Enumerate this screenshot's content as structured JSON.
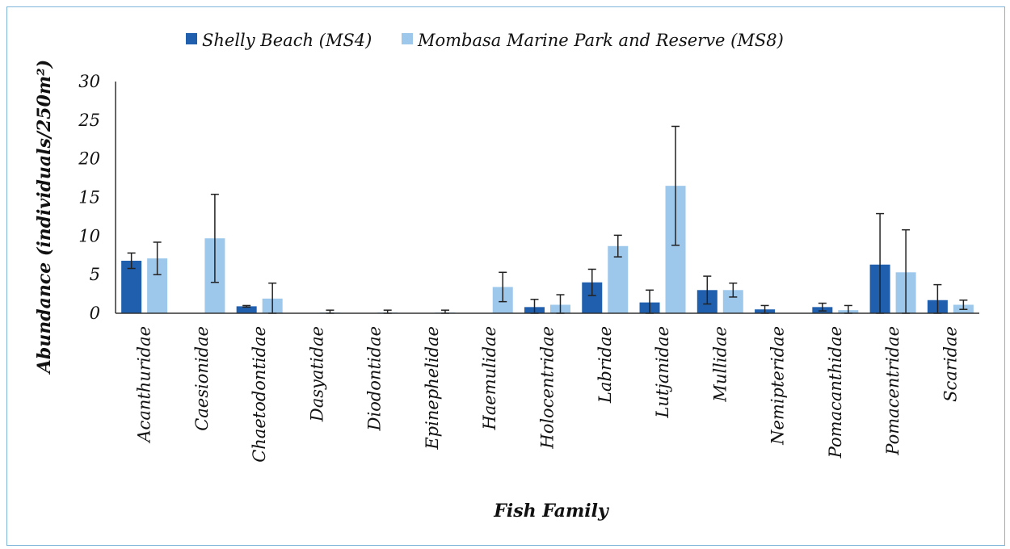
{
  "chart_data": {
    "type": "bar",
    "title": "",
    "xlabel": "Fish Family",
    "ylabel": "Abundance (individuals/250m²)",
    "ylim": [
      0,
      30
    ],
    "yticks": [
      "0",
      "5",
      "10",
      "15",
      "20",
      "25",
      "30"
    ],
    "grid": false,
    "legend_position": "top",
    "categories": [
      "Acanthuridae",
      "Caesionidae",
      "Chaetodontidae",
      "Dasyatidae",
      "Diodontidae",
      "Epinephelidae",
      "Haemulidae",
      "Holocentridae",
      "Labridae",
      "Lutjanidae",
      "Mullidae",
      "Nemipteridae",
      "Pomacanthidae",
      "Pomacentridae",
      "Scaridae"
    ],
    "series": [
      {
        "name": "Shelly Beach (MS4)",
        "color": "#1f5fae",
        "values": [
          6.8,
          0,
          0.9,
          0,
          0,
          0,
          0,
          0.8,
          4.0,
          1.4,
          3.0,
          0.5,
          0.8,
          6.3,
          1.7
        ],
        "error": [
          1.0,
          0,
          0.1,
          0,
          0,
          0,
          0,
          1.0,
          1.7,
          1.6,
          1.8,
          0.5,
          0.5,
          6.6,
          2.0
        ]
      },
      {
        "name": "Mombasa Marine Park and Reserve (MS8)",
        "color": "#9dc8ec",
        "values": [
          7.1,
          9.7,
          1.9,
          0.1,
          0.1,
          0.1,
          3.4,
          1.1,
          8.7,
          16.5,
          3.0,
          0,
          0.4,
          5.3,
          1.1
        ],
        "error": [
          2.1,
          5.7,
          2.0,
          0.3,
          0.3,
          0.3,
          1.9,
          1.3,
          1.4,
          7.7,
          0.9,
          0,
          0.6,
          5.5,
          0.6
        ]
      }
    ]
  }
}
